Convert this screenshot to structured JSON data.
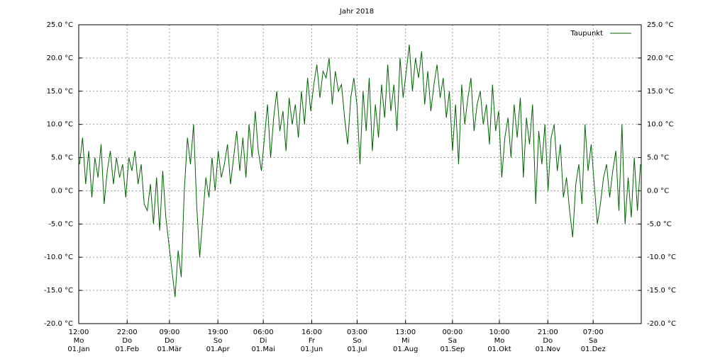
{
  "chart_data": {
    "type": "line",
    "title": "Jahr 2018",
    "x": [
      1,
      3,
      5,
      7,
      9,
      11,
      13,
      15,
      17,
      19,
      21,
      23,
      25,
      27,
      29,
      31,
      33,
      35,
      37,
      39,
      41,
      43,
      45,
      47,
      49,
      51,
      53,
      55,
      57,
      59,
      61,
      63,
      65,
      67,
      69,
      71,
      73,
      75,
      77,
      79,
      81,
      83,
      85,
      87,
      89,
      91,
      93,
      95,
      97,
      99,
      101,
      103,
      105,
      107,
      109,
      111,
      113,
      115,
      117,
      119,
      121,
      123,
      125,
      127,
      129,
      131,
      133,
      135,
      137,
      139,
      141,
      143,
      145,
      147,
      149,
      151,
      153,
      155,
      157,
      159,
      161,
      163,
      165,
      167,
      169,
      171,
      173,
      175,
      177,
      179,
      181,
      183,
      185,
      187,
      189,
      191,
      193,
      195,
      197,
      199,
      201,
      203,
      205,
      207,
      209,
      211,
      213,
      215,
      217,
      219,
      221,
      223,
      225,
      227,
      229,
      231,
      233,
      235,
      237,
      239,
      241,
      243,
      245,
      247,
      249,
      251,
      253,
      255,
      257,
      259,
      261,
      263,
      265,
      267,
      269,
      271,
      273,
      275,
      277,
      279,
      281,
      283,
      285,
      287,
      289,
      291,
      293,
      295,
      297,
      299,
      301,
      303,
      305,
      307,
      309,
      311,
      313,
      315,
      317,
      319,
      321,
      323,
      325,
      327,
      329,
      331,
      333,
      335,
      337,
      339,
      341,
      343,
      345,
      347,
      349,
      351,
      353,
      355,
      357,
      359,
      361,
      363,
      365
    ],
    "series": [
      {
        "name": "Taupunkt",
        "color": "#006400",
        "values": [
          4,
          8,
          1,
          6,
          -1,
          5,
          2,
          7,
          -2,
          3,
          6,
          1,
          5,
          2,
          4,
          -1,
          5,
          3,
          6,
          1,
          4,
          -2,
          -3,
          1,
          -5,
          2,
          -6,
          3,
          -4,
          -8,
          -12,
          -16,
          -9,
          -13,
          0,
          8,
          4,
          10,
          -2,
          -10,
          -4,
          2,
          -1,
          5,
          0,
          6,
          2,
          4,
          7,
          1,
          5,
          9,
          3,
          8,
          2,
          10,
          5,
          12,
          6,
          3,
          8,
          13,
          5,
          11,
          15,
          9,
          12,
          6,
          14,
          10,
          13,
          8,
          15,
          10,
          17,
          12,
          16,
          19,
          14,
          18,
          17,
          20,
          13,
          18,
          15,
          16,
          11,
          7,
          14,
          17,
          13,
          4,
          15,
          9,
          17,
          6,
          13,
          8,
          16,
          11,
          19,
          12,
          16,
          9,
          20,
          14,
          18,
          22,
          15,
          20,
          17,
          21,
          13,
          18,
          12,
          16,
          19,
          14,
          17,
          11,
          15,
          6,
          13,
          4,
          16,
          10,
          14,
          17,
          9,
          13,
          15,
          10,
          13,
          7,
          16,
          9,
          12,
          2,
          8,
          11,
          5,
          13,
          8,
          14,
          2,
          11,
          7,
          13,
          -2,
          9,
          4,
          10,
          0,
          8,
          10,
          3,
          7,
          -1,
          2,
          -3,
          -7,
          1,
          4,
          -2,
          10,
          3,
          7,
          1,
          -5,
          -2,
          2,
          4,
          -1,
          3,
          6,
          -3,
          10,
          -5,
          2,
          -4,
          5,
          -3,
          4
        ]
      }
    ],
    "xlim": [
      0.5,
      365.5
    ],
    "xticks": [
      {
        "value": 0.5,
        "label": [
          "12:00",
          "Mo",
          "01.Jan"
        ]
      },
      {
        "value": 31.917,
        "label": [
          "22:00",
          "Do",
          "01.Feb"
        ]
      },
      {
        "value": 59.375,
        "label": [
          "09:00",
          "Do",
          "01.Mär"
        ]
      },
      {
        "value": 90.792,
        "label": [
          "19:00",
          "So",
          "01.Apr"
        ]
      },
      {
        "value": 120.25,
        "label": [
          "06:00",
          "Di",
          "01.Mai"
        ]
      },
      {
        "value": 151.667,
        "label": [
          "16:00",
          "Fr",
          "01.Jun"
        ]
      },
      {
        "value": 181.125,
        "label": [
          "03:00",
          "So",
          "01.Jul"
        ]
      },
      {
        "value": 212.542,
        "label": [
          "13:00",
          "Mi",
          "01.Aug"
        ]
      },
      {
        "value": 243.0,
        "label": [
          "00:00",
          "Sa",
          "01.Sep"
        ]
      },
      {
        "value": 273.417,
        "label": [
          "10:00",
          "Mo",
          "01.Okt"
        ]
      },
      {
        "value": 304.875,
        "label": [
          "21:00",
          "Do",
          "01.Nov"
        ]
      },
      {
        "value": 334.292,
        "label": [
          "07:00",
          "Sa",
          "01.Dez"
        ]
      }
    ],
    "ylim": [
      -20,
      25
    ],
    "yticks": [
      {
        "value": -20,
        "label": "-20.0 °C"
      },
      {
        "value": -15,
        "label": "-15.0 °C"
      },
      {
        "value": -10,
        "label": "-10.0 °C"
      },
      {
        "value": -5,
        "label": "-5.0 °C"
      },
      {
        "value": 0,
        "label": "0.0 °C"
      },
      {
        "value": 5,
        "label": "5.0 °C"
      },
      {
        "value": 10,
        "label": "10.0 °C"
      },
      {
        "value": 15,
        "label": "15.0 °C"
      },
      {
        "value": 20,
        "label": "20.0 °C"
      },
      {
        "value": 25,
        "label": "25.0 °C"
      }
    ],
    "grid": true,
    "legend": "top-right"
  }
}
